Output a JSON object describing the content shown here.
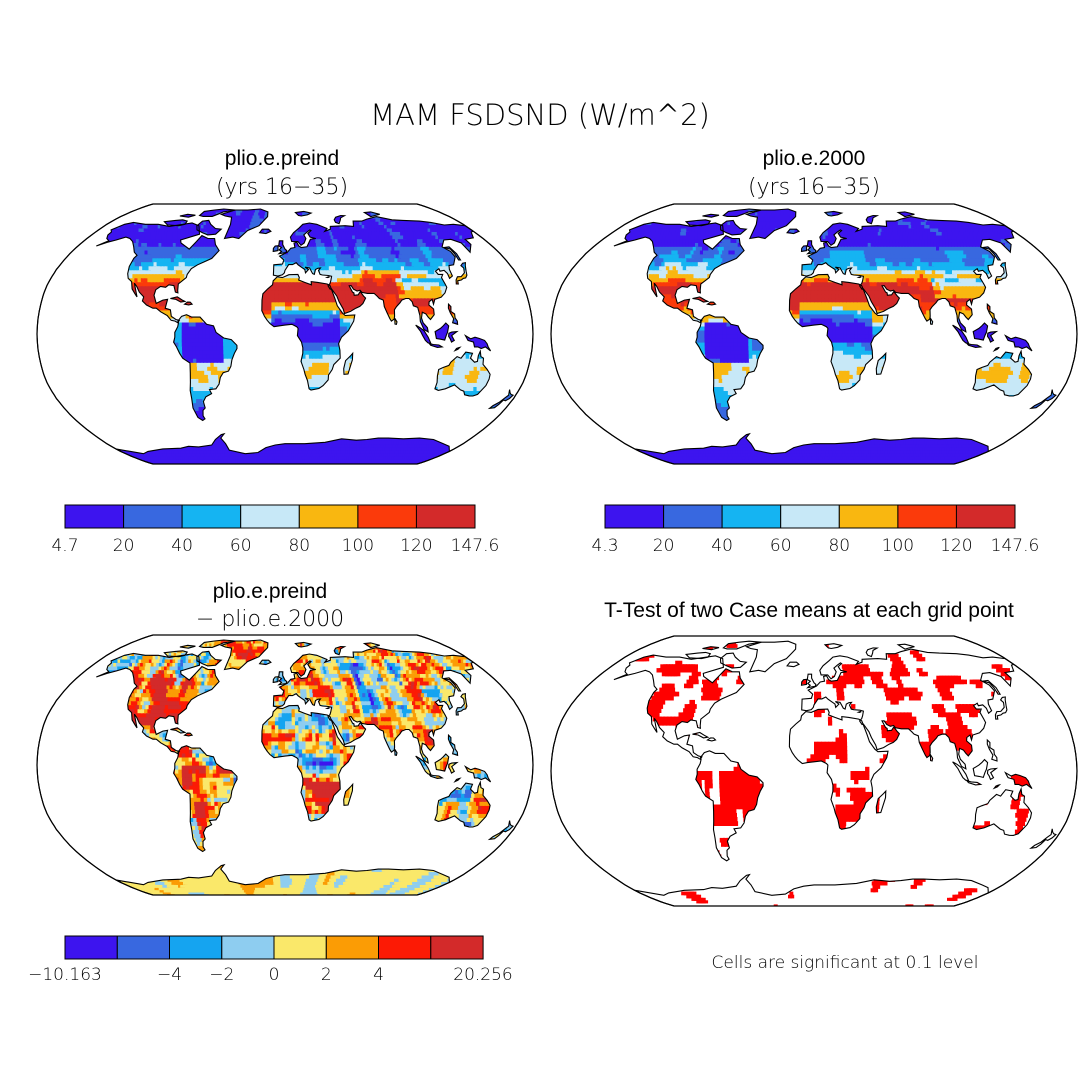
{
  "figure_title": "MAM FSDSND (W/m^2)",
  "colors": {
    "abs": [
      "#3d14ef",
      "#3868e0",
      "#15b4f2",
      "#c7e8f7",
      "#f9b710",
      "#fb3a0b",
      "#d32a2a"
    ],
    "diff": [
      "#3d14ef",
      "#3868e0",
      "#15a4f0",
      "#8ecdf0",
      "#fae86a",
      "#fb9c05",
      "#fc1a05",
      "#d32a2a"
    ],
    "sig": "#ff0000"
  },
  "chart_data": [
    {
      "type": "heatmap",
      "id": "p1",
      "title": "plio.e.preind",
      "subtitle": "(yrs 16−35)",
      "projection": "Robinson",
      "colorbar_levels": [
        4.7,
        20,
        40,
        60,
        80,
        100,
        120,
        147.6
      ],
      "colorbar_labels": [
        "4.7",
        "20",
        "40",
        "60",
        "80",
        "100",
        "120",
        "147.6"
      ]
    },
    {
      "type": "heatmap",
      "id": "p2",
      "title": "plio.e.2000",
      "subtitle": "(yrs 16−35)",
      "projection": "Robinson",
      "colorbar_levels": [
        4.3,
        20,
        40,
        60,
        80,
        100,
        120,
        147.6
      ],
      "colorbar_labels": [
        "4.3",
        "20",
        "40",
        "60",
        "80",
        "100",
        "120",
        "147.6"
      ]
    },
    {
      "type": "heatmap",
      "id": "p3",
      "title": "plio.e.preind",
      "subtitle": "− plio.e.2000",
      "projection": "Robinson",
      "colorbar_levels": [
        -10.163,
        -6,
        -4,
        -2,
        0,
        2,
        4,
        6,
        20.256
      ],
      "colorbar_labels": [
        "−10.163",
        "",
        "−4",
        "−2",
        "0",
        "2",
        "4",
        "",
        "20.256"
      ]
    },
    {
      "type": "heatmap",
      "id": "p4",
      "title": "T-Test of two Case means at each grid point",
      "projection": "Robinson",
      "note": "Cells are significant at 0.1 level"
    }
  ]
}
